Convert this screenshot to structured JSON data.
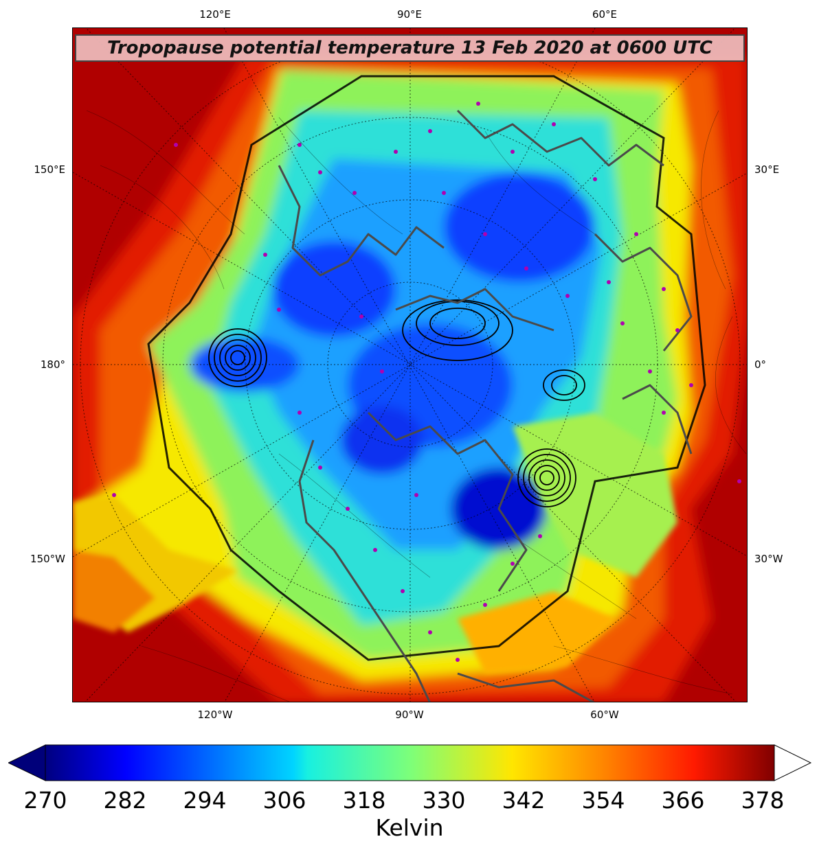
{
  "title": "Tropopause potential temperature 13 Feb 2020 at 0600 UTC",
  "lon_labels": {
    "top": [
      "120°E",
      "90°E",
      "60°E"
    ],
    "bottom": [
      "120°W",
      "90°W",
      "60°W"
    ],
    "left": [
      "150°E",
      "180°",
      "150°W"
    ],
    "right": [
      "30°E",
      "0°",
      "30°W"
    ]
  },
  "colorbar": {
    "ticks": [
      "270",
      "282",
      "294",
      "306",
      "318",
      "330",
      "342",
      "354",
      "366",
      "378"
    ],
    "label": "Kelvin",
    "min": 270,
    "max": 380,
    "extend": "both",
    "colormap": "jet"
  },
  "map": {
    "projection": "north-polar-stereographic",
    "field": "tropopause potential temperature",
    "contours": "surface pressure isobars (black)",
    "observation_marker_color": "#b000b0",
    "coastline_color": "#4a4a4a"
  }
}
